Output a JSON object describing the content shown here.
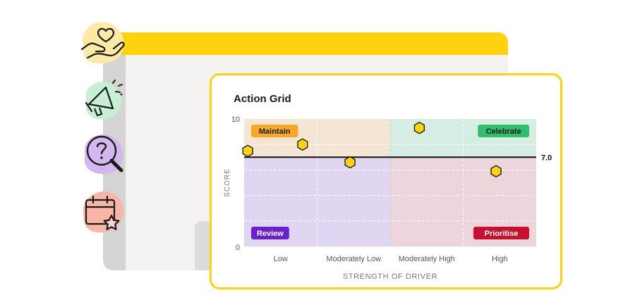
{
  "chart_data": {
    "type": "scatter",
    "title": "Action Grid",
    "xlabel": "STRENGTH OF DRIVER",
    "ylabel": "SCORE",
    "ylim": [
      0,
      10
    ],
    "y_ticks": [
      "0",
      "10"
    ],
    "categories": [
      "Low",
      "Moderately Low",
      "Moderately High",
      "High"
    ],
    "threshold": {
      "value": 7.0,
      "label": "7.0"
    },
    "quadrants": [
      {
        "label": "Maintain",
        "color": "#f5e6d3",
        "badge": "#f9a825",
        "text_color": "#1b1b1b"
      },
      {
        "label": "Celebrate",
        "color": "#d6ede4",
        "badge": "#2fbf6b",
        "text_color": "#1b1b1b"
      },
      {
        "label": "Review",
        "color": "#e0d6f1",
        "badge": "#6a1fd1",
        "text_color": "#ffffff"
      },
      {
        "label": "Prioritise",
        "color": "#ecd6dc",
        "badge": "#c8102e",
        "text_color": "#ffffff"
      }
    ],
    "points": [
      {
        "x": 0.05,
        "y": 7.5
      },
      {
        "x": 0.8,
        "y": 8.0
      },
      {
        "x": 1.45,
        "y": 6.6
      },
      {
        "x": 2.4,
        "y": 9.3
      },
      {
        "x": 3.45,
        "y": 5.9
      }
    ]
  },
  "colors": {
    "accent_yellow": "#ffd20e",
    "marker_fill": "#ffd20e",
    "marker_stroke": "#1b1b1b"
  },
  "icons": [
    "heart-hand-icon",
    "megaphone-icon",
    "magnifier-question-icon",
    "calendar-star-icon"
  ]
}
